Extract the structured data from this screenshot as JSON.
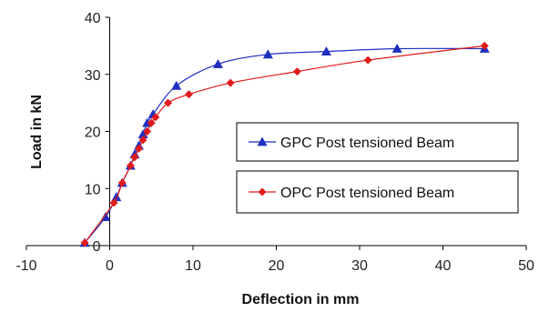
{
  "chart_data": {
    "type": "line",
    "title": "",
    "xlabel": "Deflection in mm",
    "ylabel": "Load in kN",
    "xlim": [
      -10,
      50
    ],
    "ylim": [
      0,
      40
    ],
    "x_ticks": [
      "-10",
      "0",
      "10",
      "20",
      "30",
      "40",
      "50"
    ],
    "y_ticks": [
      "0",
      "10",
      "20",
      "30",
      "40"
    ],
    "grid": false,
    "series": [
      {
        "name": "GPC Post tensioned Beam",
        "color": "#1f2fbf",
        "marker": "triangle",
        "x": [
          -3.0,
          -0.5,
          0.8,
          1.5,
          2.5,
          3.0,
          3.5,
          4.0,
          4.5,
          5.2,
          8.0,
          13.0,
          19.0,
          26.0,
          34.5,
          45.0
        ],
        "y": [
          0.5,
          5.0,
          8.5,
          11.0,
          14.0,
          16.0,
          17.5,
          19.5,
          21.5,
          23.0,
          28.0,
          31.8,
          33.5,
          34.0,
          34.5,
          34.5
        ]
      },
      {
        "name": "OPC Post tensioned Beam",
        "color": "#e01b1b",
        "marker": "diamond",
        "x": [
          -3.0,
          0.5,
          1.5,
          2.5,
          3.0,
          3.5,
          4.0,
          4.5,
          5.0,
          5.5,
          7.0,
          9.5,
          14.5,
          22.5,
          31.0,
          45.0
        ],
        "y": [
          0.5,
          7.5,
          11.0,
          14.0,
          15.5,
          17.0,
          18.5,
          20.0,
          21.5,
          22.5,
          25.0,
          26.5,
          28.5,
          30.5,
          32.5,
          35.0
        ]
      }
    ],
    "legend": {
      "placement": "center-right",
      "style": "separate-boxes"
    }
  }
}
